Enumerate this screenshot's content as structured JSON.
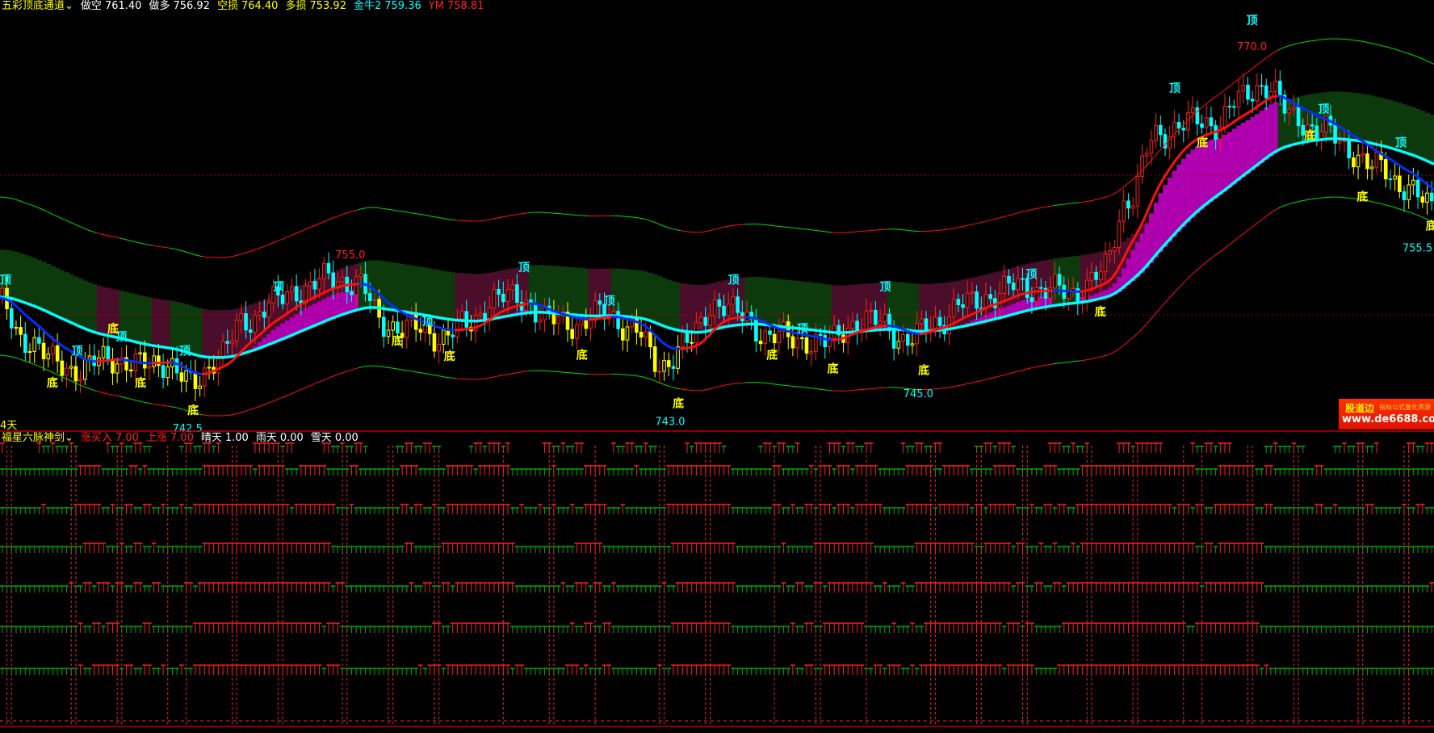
{
  "upper_header": {
    "indicator": "五彩顶底通道",
    "dropdown_icon": "chevron-down-icon",
    "items": [
      {
        "label": "做空",
        "value": "761.40",
        "color": "#ffffff"
      },
      {
        "label": "做多",
        "value": "756.92",
        "color": "#ffffff"
      },
      {
        "label": "空损",
        "value": "764.40",
        "color": "#ffff00"
      },
      {
        "label": "多损",
        "value": "753.92",
        "color": "#ffff00"
      },
      {
        "label": "金牛2",
        "value": "759.36",
        "color": "#00ffff"
      },
      {
        "label": "YM",
        "value": "758.81",
        "color": "#ff2020"
      }
    ]
  },
  "lower_header": {
    "indicator": "福星六脉神剑",
    "dropdown_icon": "chevron-down-icon",
    "items": [
      {
        "label": "涨买入",
        "value": "7.00",
        "color": "#ff2020"
      },
      {
        "label": "上涨",
        "value": "7.00",
        "color": "#ff2020"
      },
      {
        "label": "晴天",
        "value": "1.00",
        "color": "#ffffff"
      },
      {
        "label": "雨天",
        "value": "0.00",
        "color": "#ffffff"
      },
      {
        "label": "雪天",
        "value": "0.00",
        "color": "#ffffff"
      }
    ]
  },
  "left_cut_label": "4天",
  "logo": {
    "name": "股道边",
    "slogan": "指标公式量化资源",
    "url": "www.de6688.com"
  },
  "chart_data": {
    "type": "candlestick",
    "title": "五彩顶底通道",
    "approx_close_by_sample": [
      751,
      748.4,
      746.8,
      746.1,
      747.1,
      746.4,
      746.8,
      745.1,
      747.1,
      749.7,
      751,
      752,
      752.7,
      752.5,
      749.5,
      749.1,
      748.6,
      749.3,
      751.3,
      751.3,
      749.7,
      749.5,
      750.2,
      749.2,
      746.5,
      748,
      751,
      750,
      748.5,
      748.4,
      748,
      749.5,
      749.6,
      748.2,
      749.6,
      750.8,
      751.5,
      752.2,
      751.9,
      751.7,
      753,
      758.5,
      762.9,
      764,
      763.8,
      765.5,
      766.8,
      764.2,
      763.5,
      762,
      760.7,
      759.5,
      757.8
    ],
    "price_labels": [
      {
        "sample": 6.8,
        "price": 742.5,
        "text": "742.5",
        "color": "#00ffff"
      },
      {
        "sample": 12.7,
        "price": 755.0,
        "text": "755.0",
        "color": "#ff2020"
      },
      {
        "sample": 24.3,
        "price": 743.0,
        "text": "743.0",
        "color": "#00ffff"
      },
      {
        "sample": 33.3,
        "price": 745.0,
        "text": "745.0",
        "color": "#00ffff"
      },
      {
        "sample": 45.4,
        "price": 770.0,
        "text": "770.0",
        "color": "#ff2020"
      },
      {
        "sample": 51.4,
        "price": 755.5,
        "text": "755.5",
        "color": "#00ffff"
      }
    ],
    "marker_text": {
      "top": "顶",
      "bottom": "底"
    },
    "markers": [
      [
        0.2,
        752.7,
        "top"
      ],
      [
        2.8,
        747.6,
        "top"
      ],
      [
        4.4,
        748.6,
        "top"
      ],
      [
        6.7,
        747.6,
        "top"
      ],
      [
        10.1,
        752.2,
        "top"
      ],
      [
        15.5,
        749.7,
        "top"
      ],
      [
        19,
        753.6,
        "top"
      ],
      [
        22.1,
        751.2,
        "top"
      ],
      [
        26.6,
        752.7,
        "top"
      ],
      [
        29.1,
        749.2,
        "top"
      ],
      [
        32.1,
        752.2,
        "top"
      ],
      [
        37.4,
        753.1,
        "top"
      ],
      [
        42.6,
        766.5,
        "top"
      ],
      [
        45.4,
        771.4,
        "top"
      ],
      [
        48,
        765,
        "top"
      ],
      [
        50.8,
        762.6,
        "top"
      ],
      [
        1.9,
        745.3,
        "bottom"
      ],
      [
        4.1,
        749.2,
        "bottom"
      ],
      [
        5.1,
        745.3,
        "bottom"
      ],
      [
        7,
        743.3,
        "bottom"
      ],
      [
        14.4,
        748.3,
        "bottom"
      ],
      [
        16.3,
        747.2,
        "bottom"
      ],
      [
        21.1,
        747.3,
        "bottom"
      ],
      [
        24.6,
        743.8,
        "bottom"
      ],
      [
        28,
        747.3,
        "bottom"
      ],
      [
        30.2,
        746.3,
        "bottom"
      ],
      [
        33.5,
        746.2,
        "bottom"
      ],
      [
        39.9,
        750.4,
        "bottom"
      ],
      [
        43.6,
        762.6,
        "bottom"
      ],
      [
        47.5,
        763.1,
        "bottom"
      ],
      [
        49.4,
        758.7,
        "bottom"
      ],
      [
        51.9,
        756.6,
        "bottom"
      ]
    ],
    "colors": {
      "up": "#ff2020",
      "down": "#00ffff",
      "signal": "#ffff00",
      "mid_line": "#00ffff",
      "trend_up": "#ff1010",
      "trend_down": "#0030ff",
      "band_up": "#ff1010",
      "band_down": "#00dd00",
      "fill_up": "#4a0d2a",
      "fill_down": "#0d3a0d",
      "fill_magenta": "#b000b0"
    },
    "lower_panel_rows": 7,
    "lower_colors": {
      "up": "#ff2020",
      "down": "#00aa00"
    }
  }
}
